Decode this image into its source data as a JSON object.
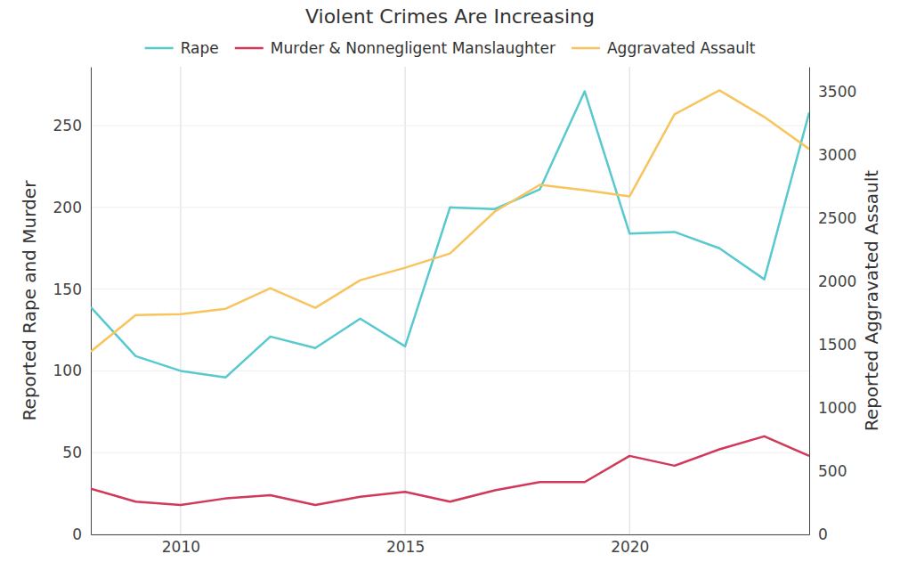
{
  "chart_data": {
    "type": "line",
    "title": "Violent Crimes Are Increasing",
    "y_label": "Reported Rape and Murder",
    "y2_label": "Reported Aggravated Assault",
    "x": [
      2008,
      2009,
      2010,
      2011,
      2012,
      2013,
      2014,
      2015,
      2016,
      2017,
      2018,
      2019,
      2020,
      2021,
      2022,
      2023,
      2024
    ],
    "series": [
      {
        "name": "Rape",
        "color": "#57c9cf",
        "values": [
          139,
          109,
          100,
          96,
          121,
          114,
          132,
          115,
          200,
          199,
          211,
          271,
          184,
          185,
          175,
          156,
          258
        ]
      },
      {
        "name": "Murder & Nonnegligent Manslaughter",
        "color": "#d1395a",
        "values": [
          28,
          20,
          18,
          22,
          24,
          18,
          23,
          26,
          20,
          27,
          32,
          32,
          48,
          42,
          52,
          60,
          48
        ]
      },
      {
        "name": "Aggravated Assault",
        "color": "#f8c45e",
        "axis": "y2",
        "values": [
          1447,
          1736,
          1743,
          1785,
          1948,
          1793,
          2011,
          2110,
          2223,
          2555,
          2766,
          2724,
          2675,
          3324,
          3514,
          3303,
          3049
        ]
      }
    ],
    "xlim": [
      2008,
      2024
    ],
    "xticks": [
      2010,
      2015,
      2020
    ],
    "ylim": [
      0,
      286
    ],
    "yticks": [
      0,
      50,
      100,
      150,
      200,
      250
    ],
    "y2lim": [
      0,
      3700
    ],
    "y2ticks": [
      0,
      500,
      1000,
      1500,
      2000,
      2500,
      3000,
      3500
    ],
    "grid": true,
    "legend": "top"
  }
}
